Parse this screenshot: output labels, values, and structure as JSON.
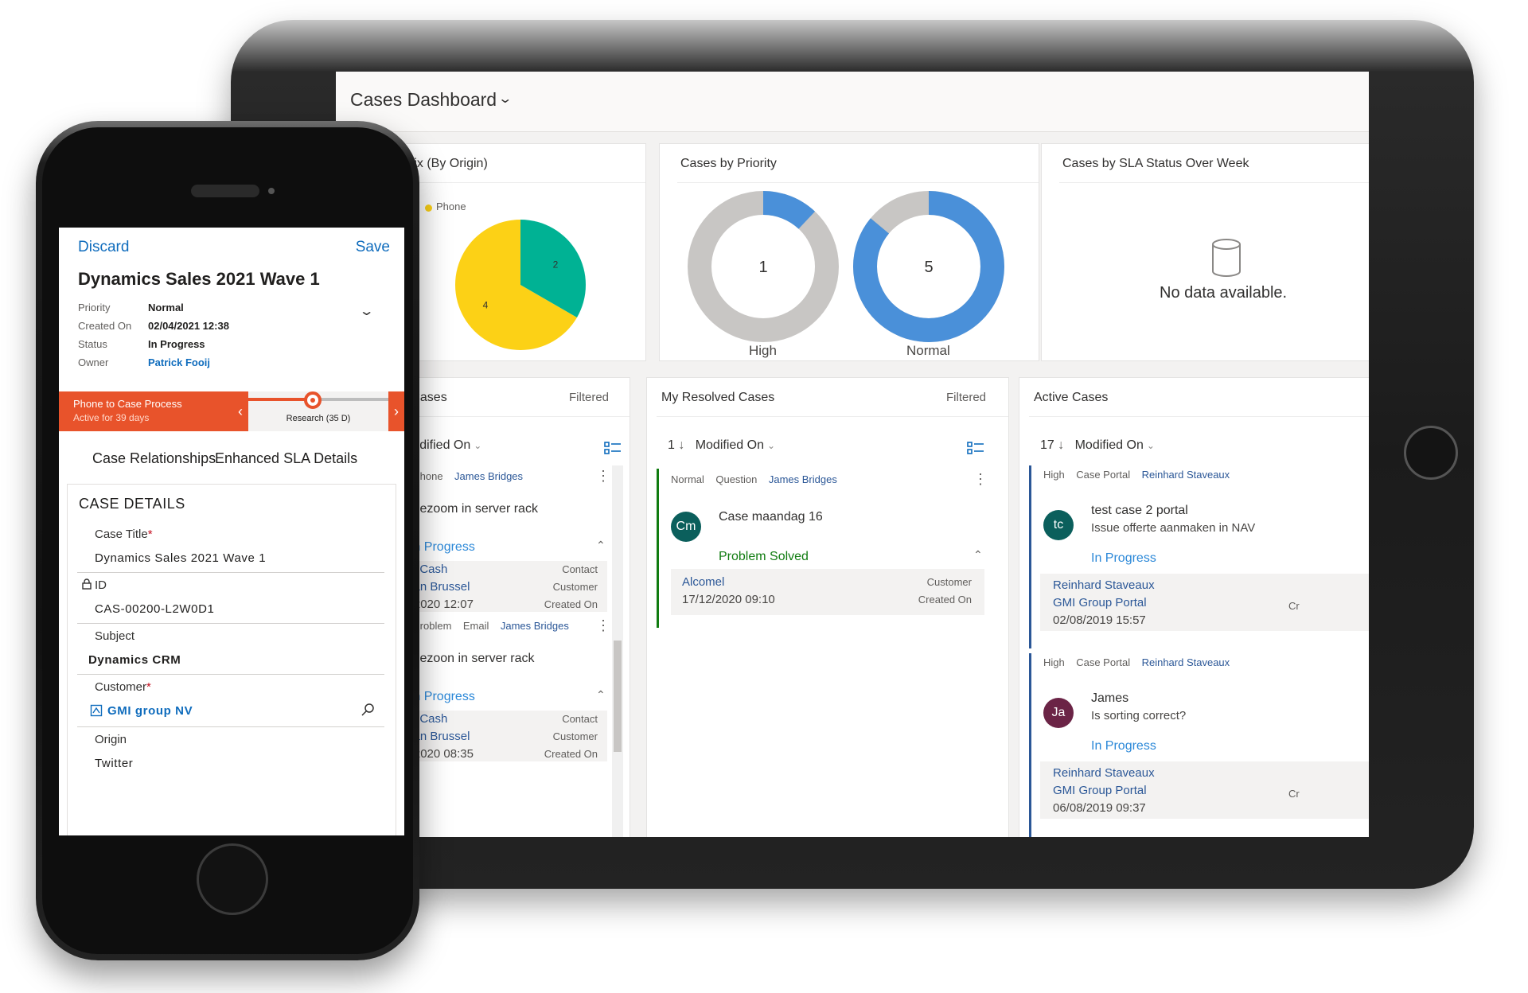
{
  "dashboard": {
    "title": "Cases Dashboard",
    "charts": {
      "origin": {
        "title": "Mix (By Origin)",
        "legend": "Phone",
        "chart_data": {
          "type": "pie",
          "title": "Mix (By Origin)",
          "labels": [
            "Phone",
            ""
          ],
          "values": [
            4,
            2
          ],
          "colors": [
            "#fcd116",
            "#00b294"
          ]
        }
      },
      "priority": {
        "title": "Cases by Priority",
        "chart_data": {
          "type": "pie",
          "title": "Cases by Priority",
          "categories": [
            "High",
            "Normal"
          ],
          "values": [
            1,
            5
          ],
          "colors": [
            "#c8c6c4",
            "#4a90d9"
          ]
        },
        "donut_high": {
          "label": "High",
          "value": "1",
          "fill": 0.12
        },
        "donut_normal": {
          "label": "Normal",
          "value": "5",
          "fill": 0.86
        }
      },
      "sla": {
        "title": "Cases by SLA Status Over Week",
        "empty": "No data available."
      }
    },
    "lists": {
      "cases": {
        "title": "e Cases",
        "filter": "Filtered",
        "sort_field": "Modified On",
        "items": [
          {
            "tags": [
              "Phone"
            ],
            "owner": "James Bridges",
            "title": "Gezoom in server rack",
            "status": "In Progress",
            "info": [
              "nny Cash",
              "k Van Brussel",
              "06/2020 12:07"
            ],
            "labels": [
              "Contact",
              "Customer",
              "Created On"
            ]
          },
          {
            "tags": [
              "Problem",
              "Email"
            ],
            "owner": "James Bridges",
            "title": "Gezoon in server rack",
            "status": "In Progress",
            "info": [
              "nny Cash",
              "k Van Brussel",
              "06/2020 08:35"
            ],
            "labels": [
              "Contact",
              "Customer",
              "Created On"
            ]
          }
        ]
      },
      "resolved": {
        "title": "My Resolved Cases",
        "filter": "Filtered",
        "count": "1",
        "sort_field": "Modified On",
        "items": [
          {
            "tags": [
              "Normal",
              "Question"
            ],
            "owner": "James Bridges",
            "avatar": "Cm",
            "avatar_color": "#0b5f5c",
            "title": "Case maandag 16",
            "status": "Problem Solved",
            "info": [
              "Alcomel",
              "17/12/2020 09:10"
            ],
            "labels": [
              "Customer",
              "Created On"
            ]
          }
        ]
      },
      "active": {
        "title": "Active Cases",
        "count": "17",
        "sort_field": "Modified On",
        "items": [
          {
            "tags": [
              "High",
              "Case Portal"
            ],
            "owner": "Reinhard Staveaux",
            "avatar": "tc",
            "avatar_color": "#0b5f5c",
            "title": "test case 2 portal",
            "subtitle": "Issue offerte aanmaken in NAV",
            "status": "In Progress",
            "info": [
              "Reinhard Staveaux",
              "GMI Group Portal",
              "02/08/2019 15:57"
            ],
            "edge": "Cr"
          },
          {
            "tags": [
              "High",
              "Case Portal"
            ],
            "owner": "Reinhard Staveaux",
            "avatar": "Ja",
            "avatar_color": "#6b2446",
            "title": "James",
            "subtitle": "Is sorting correct?",
            "status": "In Progress",
            "info": [
              "Reinhard Staveaux",
              "GMI Group Portal",
              "06/08/2019 09:37"
            ],
            "edge": "Cr"
          }
        ]
      }
    }
  },
  "phone": {
    "discard": "Discard",
    "save": "Save",
    "title": "Dynamics Sales 2021 Wave 1",
    "header_fields": [
      {
        "label": "Priority",
        "value": "Normal"
      },
      {
        "label": "Created On",
        "value": "02/04/2021 12:38"
      },
      {
        "label": "Status",
        "value": "In Progress"
      },
      {
        "label": "Owner",
        "value": "Patrick Fooij"
      }
    ],
    "process": {
      "name": "Phone to Case Process",
      "active": "Active for 39 days",
      "stage": "Research  (35 D)",
      "progress": 0.45
    },
    "tabs": [
      "Case Relationships",
      "Enhanced SLA Details"
    ],
    "section": {
      "title": "CASE DETAILS",
      "fields": [
        {
          "label": "Case Title",
          "value": "Dynamics Sales 2021 Wave 1"
        },
        {
          "label": "ID",
          "value": "CAS-00200-L2W0D1"
        },
        {
          "label": "Subject",
          "value": "Dynamics CRM"
        },
        {
          "label": "Customer",
          "value": "GMI group NV"
        },
        {
          "label": "Origin",
          "value": "Twitter"
        }
      ],
      "required_mark": "*"
    }
  },
  "colors": {
    "accent": "#0f6cbd",
    "process": "#e8532b",
    "in_progress": "#2b88d8",
    "resolved": "#107c10"
  }
}
